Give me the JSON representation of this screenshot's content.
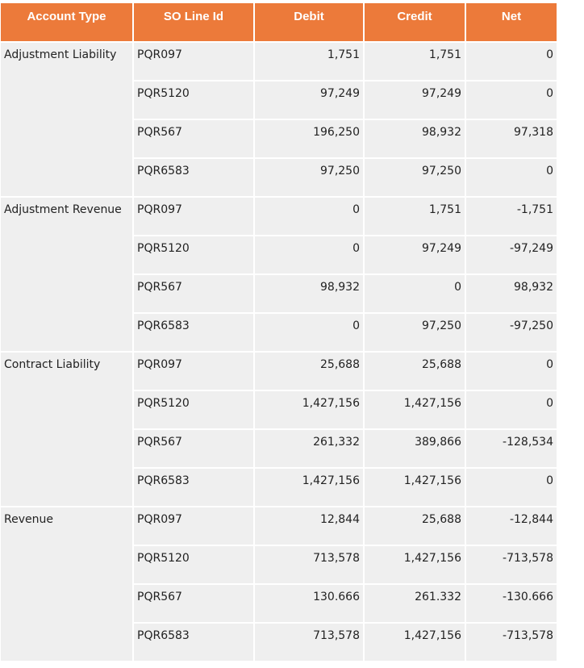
{
  "table": {
    "headers": [
      "Account Type",
      "SO Line Id",
      "Debit",
      "Credit",
      "Net"
    ],
    "groups": [
      {
        "account_type": "Adjustment Liability",
        "rows": [
          {
            "so_line_id": "PQR097",
            "debit": "1,751",
            "credit": "1,751",
            "net": "0"
          },
          {
            "so_line_id": "PQR5120",
            "debit": "97,249",
            "credit": "97,249",
            "net": "0"
          },
          {
            "so_line_id": "PQR567",
            "debit": "196,250",
            "credit": "98,932",
            "net": "97,318"
          },
          {
            "so_line_id": "PQR6583",
            "debit": "97,250",
            "credit": "97,250",
            "net": "0"
          }
        ]
      },
      {
        "account_type": "Adjustment Revenue",
        "rows": [
          {
            "so_line_id": "PQR097",
            "debit": "0",
            "credit": "1,751",
            "net": "-1,751"
          },
          {
            "so_line_id": "PQR5120",
            "debit": "0",
            "credit": "97,249",
            "net": "-97,249"
          },
          {
            "so_line_id": "PQR567",
            "debit": "98,932",
            "credit": "0",
            "net": "98,932"
          },
          {
            "so_line_id": "PQR6583",
            "debit": "0",
            "credit": "97,250",
            "net": "-97,250"
          }
        ]
      },
      {
        "account_type": "Contract Liability",
        "rows": [
          {
            "so_line_id": "PQR097",
            "debit": "25,688",
            "credit": "25,688",
            "net": "0"
          },
          {
            "so_line_id": "PQR5120",
            "debit": "1,427,156",
            "credit": "1,427,156",
            "net": "0"
          },
          {
            "so_line_id": "PQR567",
            "debit": "261,332",
            "credit": "389,866",
            "net": "-128,534"
          },
          {
            "so_line_id": "PQR6583",
            "debit": "1,427,156",
            "credit": "1,427,156",
            "net": "0"
          }
        ]
      },
      {
        "account_type": "Revenue",
        "rows": [
          {
            "so_line_id": "PQR097",
            "debit": "12,844",
            "credit": "25,688",
            "net": "-12,844"
          },
          {
            "so_line_id": "PQR5120",
            "debit": "713,578",
            "credit": "1,427,156",
            "net": "-713,578"
          },
          {
            "so_line_id": "PQR567",
            "debit": "130.666",
            "credit": "261.332",
            "net": "-130.666"
          },
          {
            "so_line_id": "PQR6583",
            "debit": "713,578",
            "credit": "1,427,156",
            "net": "-713,578"
          }
        ]
      }
    ]
  },
  "colors": {
    "header_bg": "#ec7a3a",
    "header_text": "#ffffff",
    "cell_bg": "#efefef",
    "text": "#222222"
  }
}
